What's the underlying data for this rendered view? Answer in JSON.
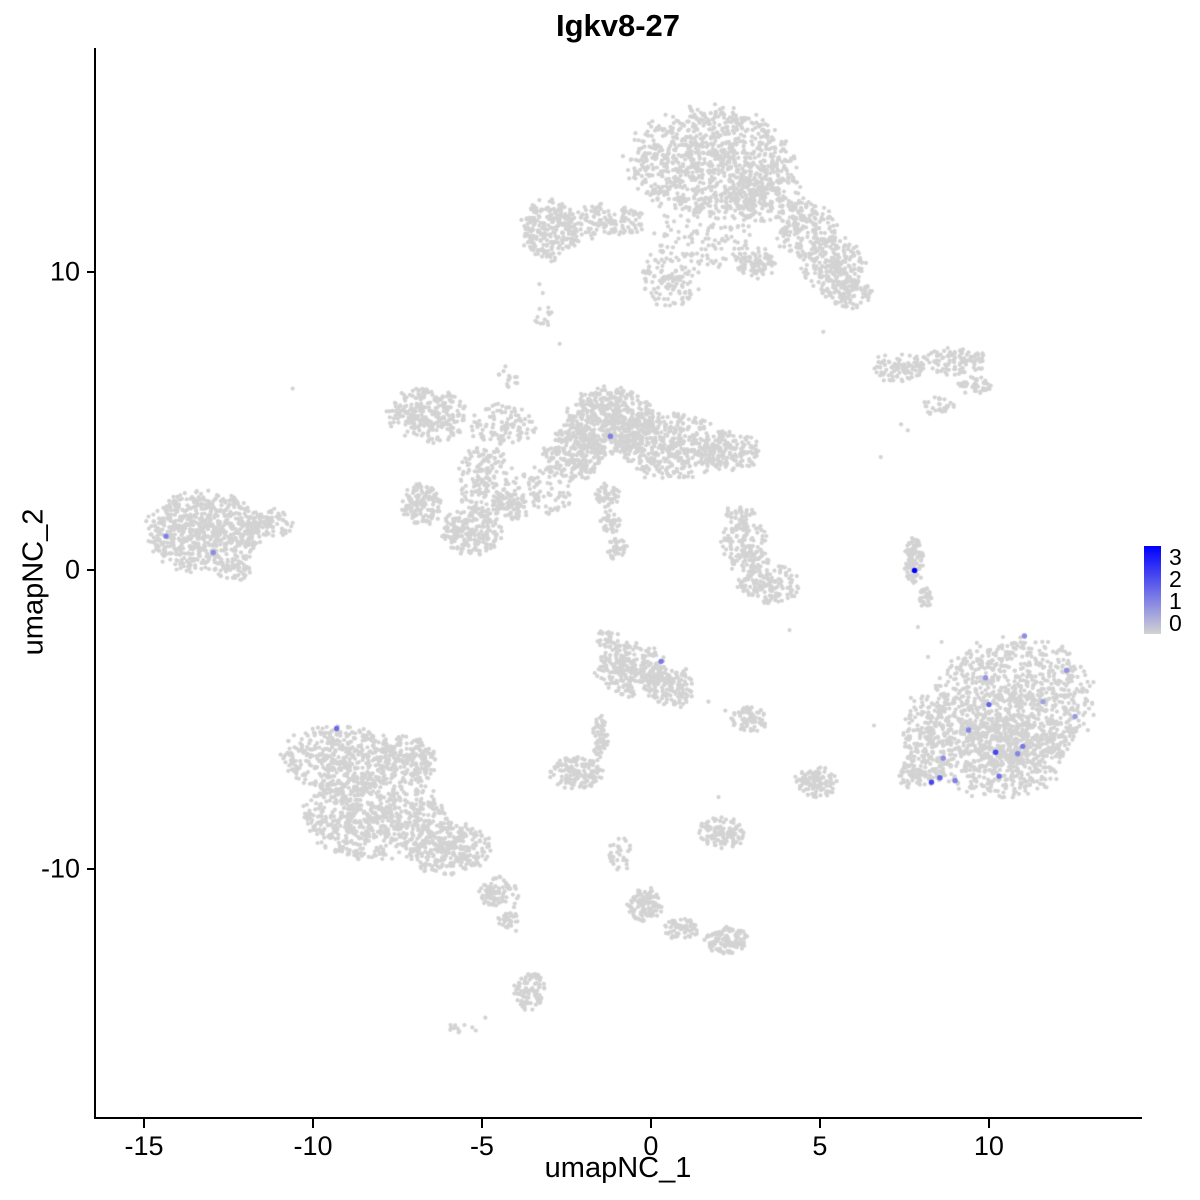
{
  "chart_data": {
    "type": "scatter",
    "title": "Igkv8-27",
    "xlabel": "umapNC_1",
    "ylabel": "umapNC_2",
    "xlim": [
      -16.42,
      14.47
    ],
    "ylim": [
      -18.33,
      17.52
    ],
    "grid": false,
    "legend_position": "right",
    "x_ticks": [
      {
        "label": "-15",
        "value": -15
      },
      {
        "label": "-10",
        "value": -10
      },
      {
        "label": "-5",
        "value": -5
      },
      {
        "label": "0",
        "value": 0
      },
      {
        "label": "5",
        "value": 5
      },
      {
        "label": "10",
        "value": 10
      }
    ],
    "y_ticks": [
      {
        "label": "10",
        "value": 10
      },
      {
        "label": "0",
        "value": 0
      },
      {
        "label": "-10",
        "value": -10
      }
    ],
    "legend_labels": [
      "3",
      "2",
      "1",
      "0"
    ],
    "color_scale_max": 3,
    "point_color_low": "#D3D3D3",
    "point_color_high": "#0000FF",
    "background_point_color": "#D3D3D3",
    "clusters": [
      {
        "cx": 1.75,
        "cy": 13.7,
        "rx": 2.4,
        "ry": 1.8,
        "n": 950
      },
      {
        "cx": 3.4,
        "cy": 12.7,
        "rx": 1.1,
        "ry": 1.0,
        "n": 200
      },
      {
        "cx": 4.6,
        "cy": 11.4,
        "rx": 0.9,
        "ry": 0.9,
        "n": 180
      },
      {
        "cx": 5.4,
        "cy": 10.2,
        "rx": 0.9,
        "ry": 1.0,
        "n": 220
      },
      {
        "cx": 5.9,
        "cy": 9.3,
        "rx": 0.6,
        "ry": 0.5,
        "n": 80
      },
      {
        "cx": 1.8,
        "cy": 11.5,
        "rx": 1.4,
        "ry": 1.3,
        "n": 130
      },
      {
        "cx": 0.6,
        "cy": 9.9,
        "rx": 0.9,
        "ry": 1.1,
        "n": 130
      },
      {
        "cx": 3.1,
        "cy": 10.3,
        "rx": 0.6,
        "ry": 0.5,
        "n": 90
      },
      {
        "cx": -3.0,
        "cy": 11.4,
        "rx": 0.85,
        "ry": 1.0,
        "n": 260
      },
      {
        "cx": -1.3,
        "cy": 11.7,
        "rx": 1.2,
        "ry": 0.6,
        "n": 140
      },
      {
        "cx": -3.15,
        "cy": 8.5,
        "rx": 0.3,
        "ry": 0.35,
        "n": 14
      },
      {
        "cx": 7.3,
        "cy": 6.8,
        "rx": 0.8,
        "ry": 0.5,
        "n": 90
      },
      {
        "cx": 9.0,
        "cy": 7.0,
        "rx": 1.0,
        "ry": 0.45,
        "n": 110
      },
      {
        "cx": 9.6,
        "cy": 6.2,
        "rx": 0.5,
        "ry": 0.3,
        "n": 40
      },
      {
        "cx": 8.5,
        "cy": 5.5,
        "rx": 0.45,
        "ry": 0.3,
        "n": 30
      },
      {
        "cx": -6.6,
        "cy": 5.2,
        "rx": 1.15,
        "ry": 0.95,
        "n": 280
      },
      {
        "cx": -4.4,
        "cy": 4.9,
        "rx": 1.0,
        "ry": 0.7,
        "n": 110
      },
      {
        "cx": -4.2,
        "cy": 6.5,
        "rx": 0.3,
        "ry": 0.4,
        "n": 15
      },
      {
        "cx": -4.9,
        "cy": 3.0,
        "rx": 0.8,
        "ry": 1.2,
        "n": 170
      },
      {
        "cx": -4.2,
        "cy": 2.2,
        "rx": 0.5,
        "ry": 0.5,
        "n": 80
      },
      {
        "cx": -1.2,
        "cy": 5.0,
        "rx": 1.3,
        "ry": 1.1,
        "n": 560
      },
      {
        "cx": 0.5,
        "cy": 4.2,
        "rx": 1.6,
        "ry": 1.1,
        "n": 450
      },
      {
        "cx": -2.3,
        "cy": 3.9,
        "rx": 0.9,
        "ry": 0.9,
        "n": 250
      },
      {
        "cx": 2.3,
        "cy": 4.0,
        "rx": 0.9,
        "ry": 0.7,
        "n": 160
      },
      {
        "cx": -5.3,
        "cy": 1.3,
        "rx": 0.85,
        "ry": 0.8,
        "n": 220
      },
      {
        "cx": -6.8,
        "cy": 2.2,
        "rx": 0.6,
        "ry": 0.7,
        "n": 140
      },
      {
        "cx": -3.3,
        "cy": 2.6,
        "rx": 1.0,
        "ry": 0.9,
        "n": 90
      },
      {
        "cx": -1.3,
        "cy": 2.5,
        "rx": 0.35,
        "ry": 0.4,
        "n": 50
      },
      {
        "cx": -1.2,
        "cy": 1.6,
        "rx": 0.3,
        "ry": 0.4,
        "n": 40
      },
      {
        "cx": -1.0,
        "cy": 0.7,
        "rx": 0.3,
        "ry": 0.4,
        "n": 40
      },
      {
        "cx": -13.2,
        "cy": 1.3,
        "rx": 1.7,
        "ry": 1.35,
        "n": 700
      },
      {
        "cx": -11.3,
        "cy": 1.6,
        "rx": 0.7,
        "ry": 0.5,
        "n": 90
      },
      {
        "cx": -12.3,
        "cy": -0.1,
        "rx": 0.5,
        "ry": 0.3,
        "n": 40
      },
      {
        "cx": 2.8,
        "cy": 0.8,
        "rx": 0.8,
        "ry": 0.8,
        "n": 130
      },
      {
        "cx": 3.5,
        "cy": -0.4,
        "rx": 0.9,
        "ry": 0.7,
        "n": 160
      },
      {
        "cx": 2.6,
        "cy": 1.8,
        "rx": 0.5,
        "ry": 0.4,
        "n": 40
      },
      {
        "cx": 7.8,
        "cy": 0.3,
        "rx": 0.28,
        "ry": 0.8,
        "n": 110
      },
      {
        "cx": 8.1,
        "cy": -0.9,
        "rx": 0.2,
        "ry": 0.35,
        "n": 30
      },
      {
        "cx": 10.8,
        "cy": -4.3,
        "rx": 2.3,
        "ry": 2.0,
        "n": 950
      },
      {
        "cx": 10.3,
        "cy": -6.2,
        "rx": 1.9,
        "ry": 1.4,
        "n": 620
      },
      {
        "cx": 8.2,
        "cy": -5.6,
        "rx": 0.75,
        "ry": 1.6,
        "n": 260
      },
      {
        "cx": 7.7,
        "cy": -6.9,
        "rx": 0.35,
        "ry": 0.4,
        "n": 40
      },
      {
        "cx": -0.6,
        "cy": -3.3,
        "rx": 1.0,
        "ry": 0.9,
        "n": 280
      },
      {
        "cx": 0.6,
        "cy": -3.9,
        "rx": 0.7,
        "ry": 0.7,
        "n": 150
      },
      {
        "cx": -1.3,
        "cy": -2.3,
        "rx": 0.35,
        "ry": 0.3,
        "n": 30
      },
      {
        "cx": 2.9,
        "cy": -5.0,
        "rx": 0.55,
        "ry": 0.4,
        "n": 70
      },
      {
        "cx": -1.5,
        "cy": -5.6,
        "rx": 0.22,
        "ry": 0.8,
        "n": 60
      },
      {
        "cx": -2.2,
        "cy": -6.8,
        "rx": 0.75,
        "ry": 0.55,
        "n": 140
      },
      {
        "cx": -9.2,
        "cy": -6.3,
        "rx": 1.7,
        "ry": 1.1,
        "n": 450
      },
      {
        "cx": -8.2,
        "cy": -8.3,
        "rx": 2.1,
        "ry": 1.4,
        "n": 720
      },
      {
        "cx": -6.0,
        "cy": -9.3,
        "rx": 1.2,
        "ry": 0.9,
        "n": 300
      },
      {
        "cx": -7.2,
        "cy": -6.4,
        "rx": 0.9,
        "ry": 0.8,
        "n": 200
      },
      {
        "cx": -4.6,
        "cy": -10.8,
        "rx": 0.5,
        "ry": 0.5,
        "n": 80
      },
      {
        "cx": -4.3,
        "cy": -11.7,
        "rx": 0.25,
        "ry": 0.3,
        "n": 25
      },
      {
        "cx": 4.9,
        "cy": -7.1,
        "rx": 0.65,
        "ry": 0.5,
        "n": 110
      },
      {
        "cx": 2.1,
        "cy": -8.8,
        "rx": 0.65,
        "ry": 0.55,
        "n": 110
      },
      {
        "cx": -0.9,
        "cy": -9.5,
        "rx": 0.35,
        "ry": 0.6,
        "n": 30
      },
      {
        "cx": -0.2,
        "cy": -11.2,
        "rx": 0.55,
        "ry": 0.55,
        "n": 110
      },
      {
        "cx": 0.9,
        "cy": -12.0,
        "rx": 0.6,
        "ry": 0.35,
        "n": 60
      },
      {
        "cx": 2.2,
        "cy": -12.4,
        "rx": 0.65,
        "ry": 0.45,
        "n": 110
      },
      {
        "cx": -4.0,
        "cy": -11.5,
        "rx": 0.12,
        "ry": 1.0,
        "n": 14
      },
      {
        "cx": -3.6,
        "cy": -14.1,
        "rx": 0.45,
        "ry": 0.65,
        "n": 100
      },
      {
        "cx": -5.6,
        "cy": -15.3,
        "rx": 0.55,
        "ry": 0.2,
        "n": 12
      }
    ],
    "single_points": [
      [
        -10.6,
        6.1
      ],
      [
        5.1,
        8.0
      ],
      [
        4.1,
        -2.0
      ],
      [
        7.6,
        4.7
      ],
      [
        7.4,
        4.9
      ],
      [
        6.8,
        3.8
      ],
      [
        8.6,
        -2.4
      ],
      [
        8.9,
        -3.2
      ],
      [
        9.3,
        -3.7
      ],
      [
        8.2,
        -2.9
      ],
      [
        6.6,
        -5.2
      ],
      [
        7.9,
        -1.9
      ],
      [
        1.7,
        -4.4
      ],
      [
        2.2,
        -4.7
      ],
      [
        0.1,
        11.3
      ],
      [
        0.4,
        11.9
      ],
      [
        -3.3,
        9.6
      ],
      [
        -3.2,
        9.3
      ],
      [
        -2.7,
        7.6
      ],
      [
        3.9,
        -0.6
      ],
      [
        -4.9,
        -15.0
      ],
      [
        2.0,
        -7.6
      ]
    ],
    "expressing_cells": [
      {
        "x": 7.8,
        "y": 0.0,
        "value": 3.0
      },
      {
        "x": -14.35,
        "y": 1.15,
        "value": 1.2
      },
      {
        "x": -12.95,
        "y": 0.6,
        "value": 1.0
      },
      {
        "x": -1.2,
        "y": 4.5,
        "value": 1.2
      },
      {
        "x": 0.3,
        "y": -3.05,
        "value": 1.3
      },
      {
        "x": -9.3,
        "y": -5.3,
        "value": 1.5
      },
      {
        "x": 11.05,
        "y": -2.2,
        "value": 1.0
      },
      {
        "x": 12.3,
        "y": -3.35,
        "value": 0.9
      },
      {
        "x": 10.0,
        "y": -4.5,
        "value": 1.6
      },
      {
        "x": 9.4,
        "y": -5.35,
        "value": 1.1
      },
      {
        "x": 11.0,
        "y": -5.9,
        "value": 1.3
      },
      {
        "x": 10.2,
        "y": -6.1,
        "value": 2.0
      },
      {
        "x": 10.85,
        "y": -6.15,
        "value": 1.1
      },
      {
        "x": 9.0,
        "y": -7.05,
        "value": 1.2
      },
      {
        "x": 10.3,
        "y": -6.9,
        "value": 1.4
      },
      {
        "x": 8.3,
        "y": -7.1,
        "value": 2.0
      },
      {
        "x": 8.55,
        "y": -6.95,
        "value": 1.6
      },
      {
        "x": 8.65,
        "y": -6.3,
        "value": 1.0
      },
      {
        "x": 9.9,
        "y": -3.6,
        "value": 0.9
      },
      {
        "x": 12.55,
        "y": -4.9,
        "value": 0.8
      },
      {
        "x": 11.6,
        "y": -4.4,
        "value": 0.7
      }
    ]
  }
}
